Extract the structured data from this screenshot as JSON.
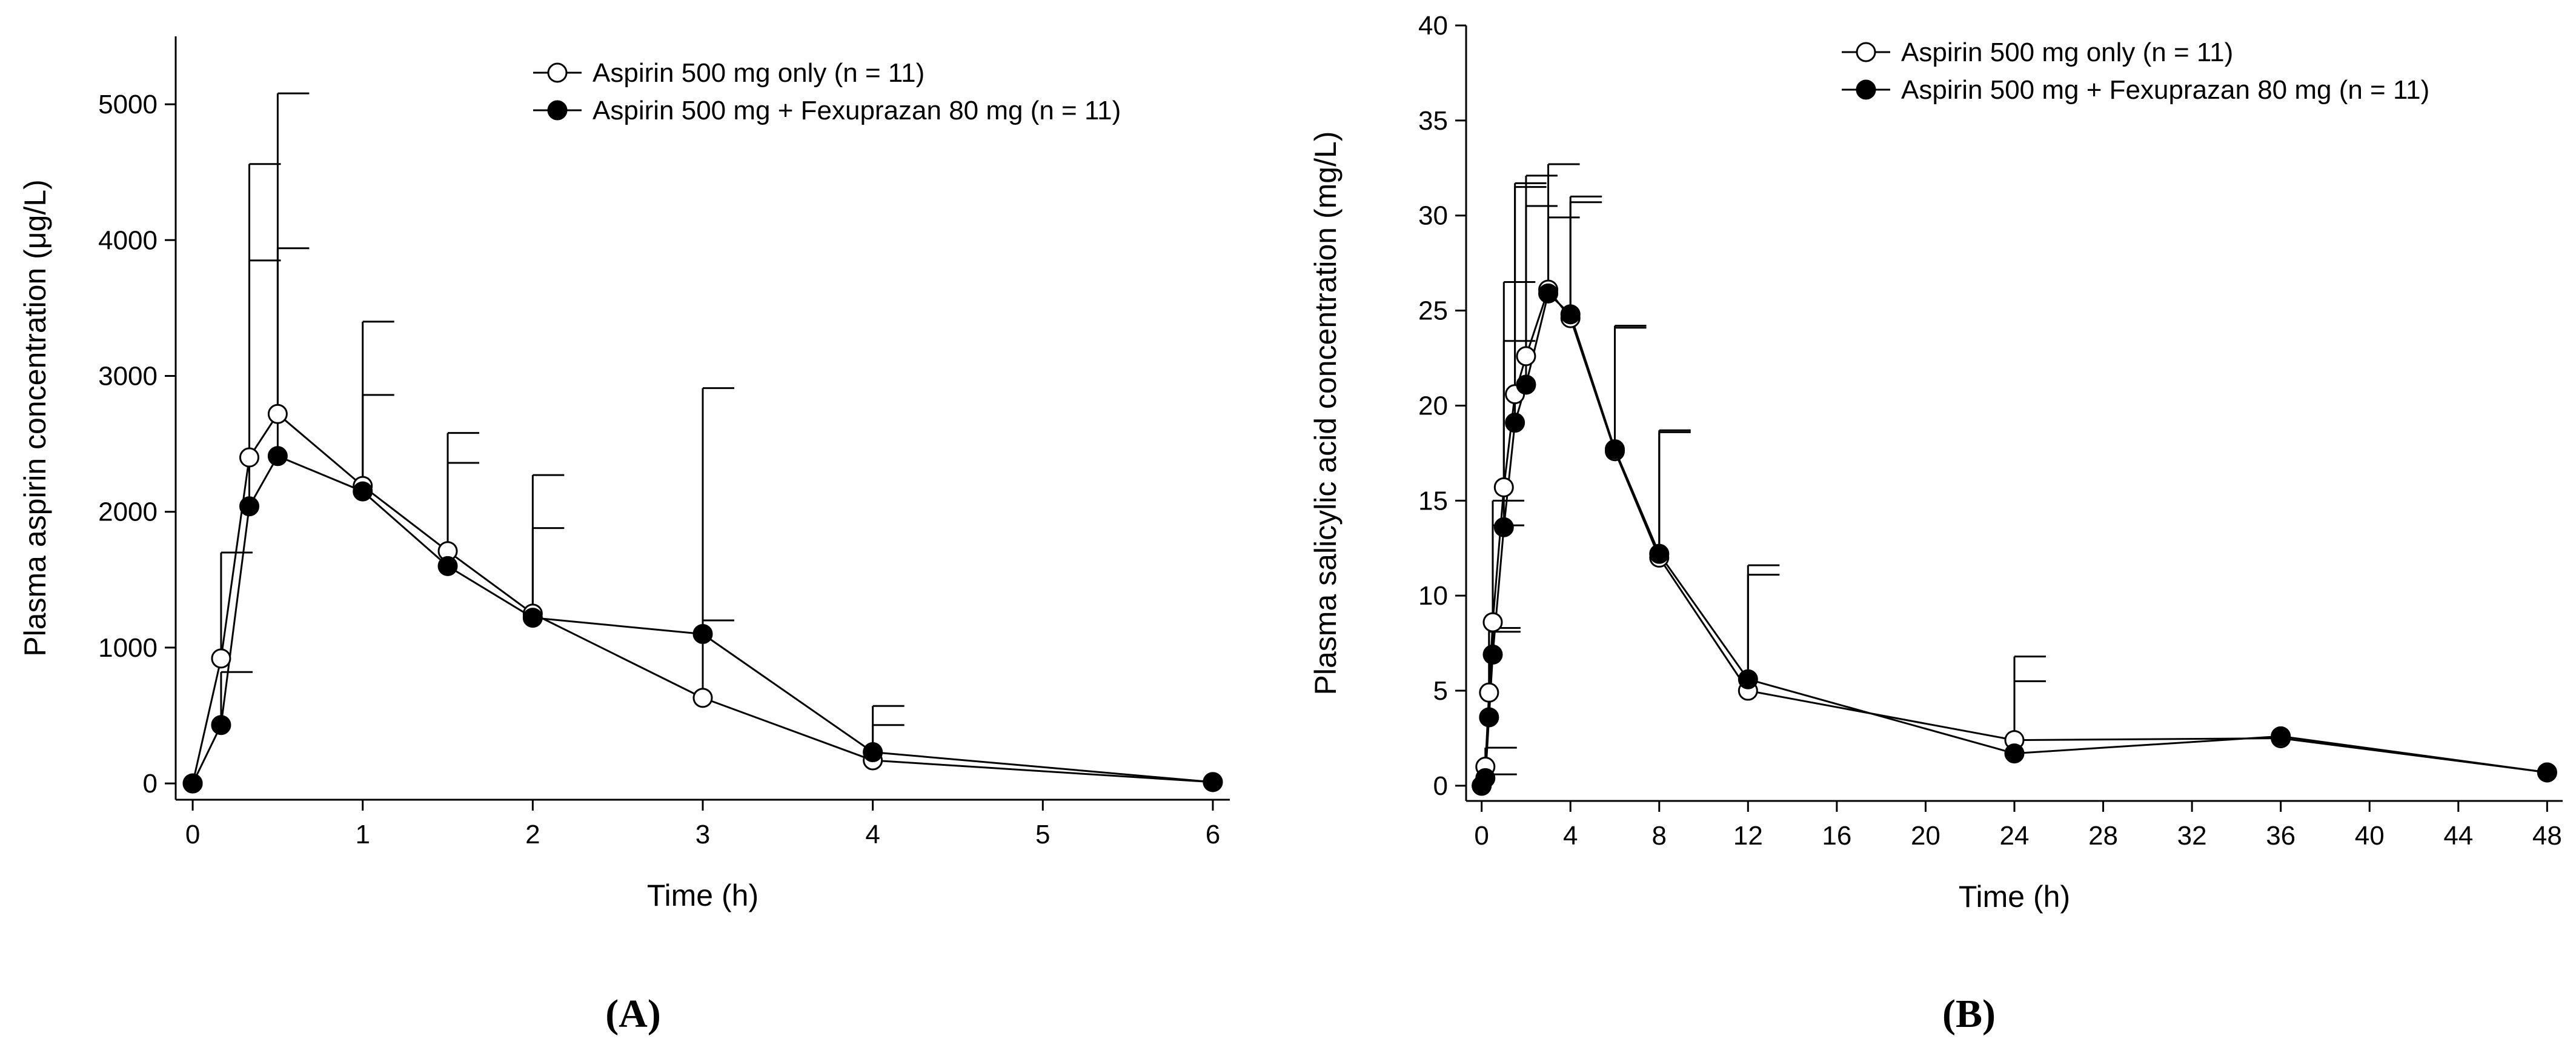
{
  "chart_data": [
    {
      "type": "line",
      "panel_label": "A",
      "xlabel": "Time (h)",
      "ylabel": "Plasma aspirin concentration (μg/L)",
      "xlim": [
        -0.1,
        6.1
      ],
      "ylim": [
        -120,
        5500
      ],
      "xticks": [
        0,
        1,
        2,
        3,
        4,
        5,
        6
      ],
      "yticks": [
        0,
        1000,
        2000,
        3000,
        4000,
        5000
      ],
      "legend_position": "top-right",
      "series": [
        {
          "name": "Aspirin 500 mg only (n = 11)",
          "marker": "open-circle",
          "x": [
            0,
            0.167,
            0.333,
            0.5,
            1,
            1.5,
            2,
            3,
            4,
            6
          ],
          "y": [
            0,
            920,
            2400,
            2720,
            2190,
            1710,
            1250,
            630,
            170,
            10
          ],
          "err_upper": [
            0,
            1700,
            3850,
            5080,
            3400,
            2580,
            2270,
            1200,
            570,
            0
          ]
        },
        {
          "name": "Aspirin 500 mg + Fexuprazan 80 mg (n = 11)",
          "marker": "filled-circle",
          "x": [
            0,
            0.167,
            0.333,
            0.5,
            1,
            1.5,
            2,
            3,
            4,
            6
          ],
          "y": [
            0,
            430,
            2040,
            2410,
            2150,
            1600,
            1220,
            1100,
            230,
            10
          ],
          "err_upper": [
            0,
            820,
            4560,
            3940,
            2860,
            2360,
            1880,
            2910,
            430,
            0
          ]
        }
      ]
    },
    {
      "type": "line",
      "panel_label": "B",
      "xlabel": "Time (h)",
      "ylabel": "Plasma salicylic acid concentration (mg/L)",
      "xlim": [
        -0.7,
        48.7
      ],
      "ylim": [
        -0.8,
        40
      ],
      "xticks": [
        0,
        4,
        8,
        12,
        16,
        20,
        24,
        28,
        32,
        36,
        40,
        44,
        48
      ],
      "yticks": [
        0,
        5,
        10,
        15,
        20,
        25,
        30,
        35,
        40
      ],
      "legend_position": "top-right",
      "series": [
        {
          "name": "Aspirin 500 mg only (n = 11)",
          "marker": "open-circle",
          "x": [
            0,
            0.167,
            0.333,
            0.5,
            1,
            1.5,
            2,
            3,
            4,
            6,
            8,
            12,
            24,
            36,
            48
          ],
          "y": [
            0,
            1.0,
            4.9,
            8.6,
            15.7,
            20.6,
            22.6,
            26.1,
            24.6,
            17.6,
            12.0,
            5.0,
            2.4,
            2.5,
            0.7
          ],
          "err_upper": [
            0,
            2.0,
            8.1,
            15.0,
            26.5,
            31.7,
            32.1,
            32.7,
            30.7,
            24.2,
            18.7,
            11.1,
            6.8,
            0,
            0
          ]
        },
        {
          "name": "Aspirin 500 mg + Fexuprazan 80 mg (n = 11)",
          "marker": "filled-circle",
          "x": [
            0,
            0.167,
            0.333,
            0.5,
            1,
            1.5,
            2,
            3,
            4,
            6,
            8,
            12,
            24,
            36,
            48
          ],
          "y": [
            0,
            0.4,
            3.6,
            6.9,
            13.6,
            19.1,
            21.1,
            25.9,
            24.8,
            17.7,
            12.2,
            5.6,
            1.7,
            2.6,
            0.7
          ],
          "err_upper": [
            0,
            0.6,
            8.3,
            13.7,
            23.4,
            31.5,
            30.5,
            29.9,
            31.0,
            24.1,
            18.6,
            11.6,
            5.5,
            0,
            0
          ]
        }
      ]
    }
  ]
}
